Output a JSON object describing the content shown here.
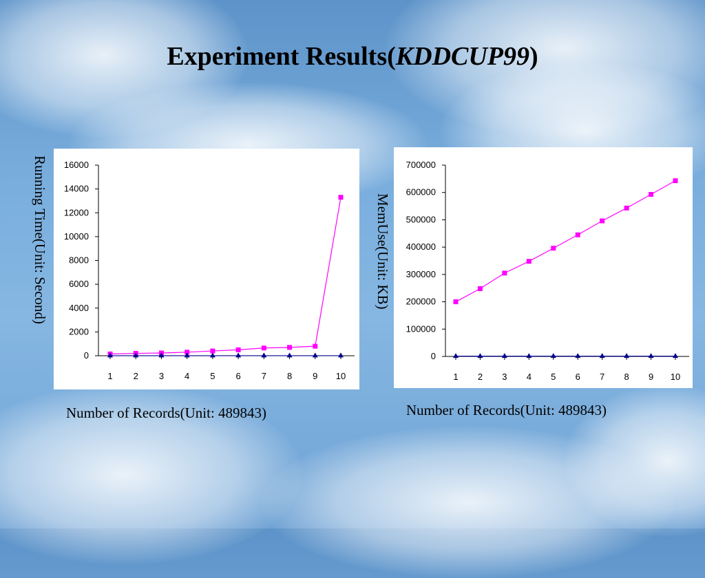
{
  "slide": {
    "title_main": "Experiment Results(",
    "title_em": "KDDCUP99",
    "title_close": ")"
  },
  "colors": {
    "series_a": "#ff00ff",
    "series_b": "#00008b"
  },
  "chart_data": [
    {
      "type": "line",
      "ylabel": "Running Time(Unit: Second)",
      "xlabel": "Number of Records(Unit: 489843)",
      "x": [
        1,
        2,
        3,
        4,
        5,
        6,
        7,
        8,
        9,
        10
      ],
      "xticks": [
        "1",
        "2",
        "3",
        "4",
        "5",
        "6",
        "7",
        "8",
        "9",
        "10"
      ],
      "ylim": [
        0,
        16000
      ],
      "yticks": [
        "0",
        "2000",
        "4000",
        "6000",
        "8000",
        "10000",
        "12000",
        "14000",
        "16000"
      ],
      "series": [
        {
          "values": [
            150,
            200,
            230,
            300,
            400,
            500,
            650,
            700,
            800,
            13300
          ]
        },
        {
          "values": [
            5,
            5,
            5,
            5,
            5,
            5,
            5,
            5,
            5,
            5
          ]
        }
      ]
    },
    {
      "type": "line",
      "ylabel": "MemUse(Unit: KB)",
      "xlabel": "Number of Records(Unit: 489843)",
      "x": [
        1,
        2,
        3,
        4,
        5,
        6,
        7,
        8,
        9,
        10
      ],
      "xticks": [
        "1",
        "2",
        "3",
        "4",
        "5",
        "6",
        "7",
        "8",
        "9",
        "10"
      ],
      "ylim": [
        0,
        700000
      ],
      "yticks": [
        "0",
        "100000",
        "200000",
        "300000",
        "400000",
        "500000",
        "600000",
        "700000"
      ],
      "series": [
        {
          "values": [
            200000,
            248000,
            305000,
            348000,
            396000,
            445000,
            496000,
            543000,
            593000,
            643000
          ]
        },
        {
          "values": [
            1000,
            1000,
            1000,
            1000,
            1000,
            1000,
            1000,
            1000,
            1000,
            1000
          ]
        }
      ]
    }
  ]
}
